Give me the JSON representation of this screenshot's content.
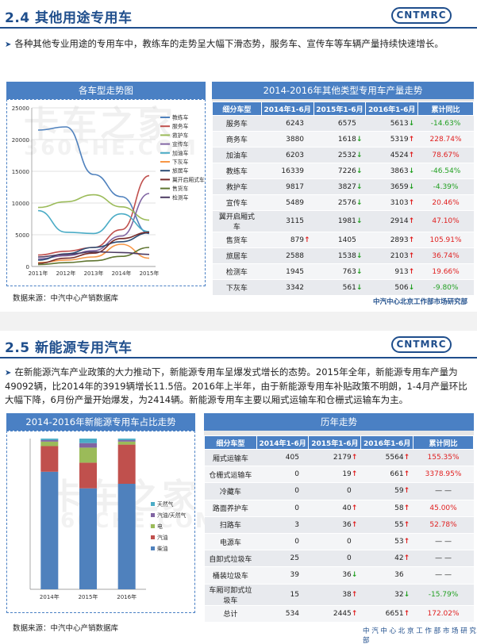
{
  "logo_text": "CNTMRC",
  "section1": {
    "title": "2.4 其他用途专用车",
    "bullet": "各种其他专业用途的专用车中，教练车的走势呈大幅下滑态势，服务车、宣传车等车辆产量持续快速增长。",
    "chart_title": "各车型走势图",
    "table_title": "2014-2016年其他类型专用车产量走势",
    "headers": [
      "细分车型",
      "2014年1-6月",
      "2015年1-6月",
      "2016年1-6月",
      "累计同比"
    ],
    "rows": [
      {
        "name": "服务车",
        "a": "6243",
        "a_t": "",
        "b": "6575",
        "b_t": "",
        "c": "5613",
        "c_t": "↓",
        "d": "-14.63%"
      },
      {
        "name": "商务车",
        "a": "3880",
        "a_t": "",
        "b": "1618",
        "b_t": "↓",
        "c": "5319",
        "c_t": "↑",
        "d": "228.74%"
      },
      {
        "name": "加油车",
        "a": "6203",
        "a_t": "",
        "b": "2532",
        "b_t": "↓",
        "c": "4524",
        "c_t": "↑",
        "d": "78.67%"
      },
      {
        "name": "教练车",
        "a": "16339",
        "a_t": "",
        "b": "7226",
        "b_t": "↓",
        "c": "3863",
        "c_t": "↓",
        "d": "-46.54%"
      },
      {
        "name": "救护车",
        "a": "9817",
        "a_t": "",
        "b": "3827",
        "b_t": "↓",
        "c": "3659",
        "c_t": "↓",
        "d": "-4.39%"
      },
      {
        "name": "宣传车",
        "a": "5489",
        "a_t": "",
        "b": "2576",
        "b_t": "↓",
        "c": "3103",
        "c_t": "↑",
        "d": "20.46%"
      },
      {
        "name": "翼开启厢式车",
        "a": "3115",
        "a_t": "",
        "b": "1981",
        "b_t": "↓",
        "c": "2914",
        "c_t": "↑",
        "d": "47.10%"
      },
      {
        "name": "售货车",
        "a": "879",
        "a_t": "↑",
        "b": "1405",
        "b_t": "",
        "c": "2893",
        "c_t": "↑",
        "d": "105.91%"
      },
      {
        "name": "旅居车",
        "a": "2588",
        "a_t": "",
        "b": "1538",
        "b_t": "↓",
        "c": "2103",
        "c_t": "↑",
        "d": "36.74%"
      },
      {
        "name": "检测车",
        "a": "1945",
        "a_t": "",
        "b": "763",
        "b_t": "↓",
        "c": "913",
        "c_t": "↑",
        "d": "19.66%"
      },
      {
        "name": "下灰车",
        "a": "3342",
        "a_t": "",
        "b": "561",
        "b_t": "↓",
        "c": "506",
        "c_t": "↓",
        "d": "-9.80%"
      }
    ],
    "source": "数据来源：中汽中心产销数据库",
    "footer": "中汽中心北京工作部市场研究部"
  },
  "section2": {
    "title": "2.5 新能源专用汽车",
    "bullet": "在新能源汽车产业政策的大力推动下，新能源专用车呈爆发式增长的态势。2015年全年，新能源专用车产量为49092辆，比2014年的3919辆增长11.5倍。2016年上半年，由于新能源专用车补贴政策不明朗，1-4月产量环比大幅下降，6月份产量开始爆发，为2414辆。新能源专用车主要以厢式运输车和仓栅式运输车为主。",
    "chart_title": "2014-2016年新能源专用车占比走势",
    "table_title": "历年走势",
    "headers": [
      "细分车型",
      "2014年1-6月",
      "2015年1-6月",
      "2016年1-6月",
      "累计同比"
    ],
    "rows": [
      {
        "name": "厢式运输车",
        "a": "405",
        "a_t": "",
        "b": "2179",
        "b_t": "↑",
        "c": "5564",
        "c_t": "↑",
        "d": "155.35%"
      },
      {
        "name": "仓栅式运输车",
        "a": "0",
        "a_t": "",
        "b": "19",
        "b_t": "↑",
        "c": "661",
        "c_t": "↑",
        "d": "3378.95%"
      },
      {
        "name": "冷藏车",
        "a": "0",
        "a_t": "",
        "b": "0",
        "b_t": "",
        "c": "59",
        "c_t": "↑",
        "d": "— —"
      },
      {
        "name": "路面养护车",
        "a": "0",
        "a_t": "",
        "b": "40",
        "b_t": "↑",
        "c": "58",
        "c_t": "↑",
        "d": "45.00%"
      },
      {
        "name": "扫路车",
        "a": "3",
        "a_t": "",
        "b": "36",
        "b_t": "↑",
        "c": "55",
        "c_t": "↑",
        "d": "52.78%"
      },
      {
        "name": "电源车",
        "a": "0",
        "a_t": "",
        "b": "0",
        "b_t": "",
        "c": "53",
        "c_t": "↑",
        "d": "— —"
      },
      {
        "name": "自卸式垃圾车",
        "a": "25",
        "a_t": "",
        "b": "0",
        "b_t": "",
        "c": "42",
        "c_t": "↑",
        "d": "— —"
      },
      {
        "name": "桶装垃圾车",
        "a": "39",
        "a_t": "",
        "b": "36",
        "b_t": "↓",
        "c": "36",
        "c_t": "",
        "d": "— —"
      },
      {
        "name": "车厢可卸式垃圾车",
        "a": "15",
        "a_t": "",
        "b": "38",
        "b_t": "↑",
        "c": "32",
        "c_t": "↓",
        "d": "-15.79%"
      },
      {
        "name": "总计",
        "a": "534",
        "a_t": "",
        "b": "2445",
        "b_t": "↑",
        "c": "6651",
        "c_t": "↑",
        "d": "172.02%"
      }
    ],
    "source": "数据来源：中汽中心产销数据库",
    "footer": "中 汽 中 心 北 京 工 作 部 市 场 研 究 部"
  },
  "watermark": {
    "big": "卡车之家",
    "small": "360CHE.COM"
  },
  "colors": {
    "up": "#e02020",
    "down": "#22a022",
    "accent": "#1f4e8c",
    "header": "#4a80c4"
  },
  "chart_data": [
    {
      "type": "line",
      "categories": [
        "2011年",
        "2012年",
        "2013年",
        "2014年",
        "2015年"
      ],
      "ylim": [
        0,
        25000
      ],
      "yticks": [
        "0",
        "5000",
        "10000",
        "15000",
        "20000",
        "25000"
      ],
      "series": [
        {
          "name": "教练车",
          "color": "#4f81bd",
          "values": [
            21500,
            22000,
            14500,
            11000,
            5200
          ]
        },
        {
          "name": "服务车",
          "color": "#c0504d",
          "values": [
            1800,
            2400,
            3000,
            5800,
            14300
          ]
        },
        {
          "name": "救护车",
          "color": "#9bbb59",
          "values": [
            9300,
            10200,
            11300,
            9400,
            7300
          ]
        },
        {
          "name": "宣传车",
          "color": "#8064a2",
          "values": [
            1200,
            1700,
            2500,
            4800,
            11500
          ]
        },
        {
          "name": "加油车",
          "color": "#4bacc6",
          "values": [
            8800,
            5400,
            5200,
            8300,
            5500
          ]
        },
        {
          "name": "下灰车",
          "color": "#f79646",
          "values": [
            600,
            1000,
            1500,
            3500,
            1300
          ]
        },
        {
          "name": "旅居车",
          "color": "#2c4d75",
          "values": [
            1000,
            2000,
            3000,
            3900,
            5300
          ]
        },
        {
          "name": "翼开启厢式车",
          "color": "#772c2a",
          "values": [
            500,
            1300,
            2100,
            4400,
            5400
          ]
        },
        {
          "name": "售货车",
          "color": "#5f7530",
          "values": [
            300,
            600,
            900,
            1600,
            3000
          ]
        },
        {
          "name": "检测车",
          "color": "#4d3b62",
          "values": [
            1500,
            1900,
            2300,
            2200,
            1900
          ]
        }
      ]
    },
    {
      "type": "bar",
      "stacked": true,
      "categories": [
        "2014年",
        "2015年",
        "2016年"
      ],
      "ylim": [
        0,
        100
      ],
      "series": [
        {
          "name": "柴油",
          "color": "#4f81bd",
          "values": [
            78,
            67,
            70
          ]
        },
        {
          "name": "汽油",
          "color": "#c0504d",
          "values": [
            17,
            17,
            26
          ]
        },
        {
          "name": "电",
          "color": "#9bbb59",
          "values": [
            3,
            10,
            2
          ]
        },
        {
          "name": "汽油/天然气",
          "color": "#8064a2",
          "values": [
            1,
            3,
            1
          ]
        },
        {
          "name": "天然气",
          "color": "#4bacc6",
          "values": [
            1,
            3,
            1
          ]
        }
      ]
    }
  ]
}
